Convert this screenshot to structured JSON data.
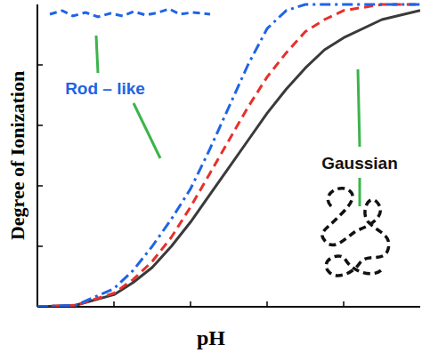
{
  "chart_data": {
    "type": "line",
    "x_label": "pH",
    "y_label": "Degree of Ionization",
    "x": [
      0,
      0.5,
      1,
      1.25,
      1.5,
      1.75,
      2,
      2.25,
      2.5,
      2.75,
      3,
      3.25,
      3.5,
      3.75,
      4,
      4.5,
      5
    ],
    "series": [
      {
        "color": "#3a3a3a",
        "line_style": "solid",
        "values": [
          0,
          0.005,
          0.04,
          0.08,
          0.13,
          0.2,
          0.28,
          0.37,
          0.46,
          0.55,
          0.64,
          0.72,
          0.79,
          0.85,
          0.89,
          0.95,
          0.98
        ]
      },
      {
        "color": "#e8302a",
        "line_style": "dashed",
        "values": [
          0,
          0.005,
          0.045,
          0.09,
          0.15,
          0.23,
          0.33,
          0.44,
          0.55,
          0.66,
          0.76,
          0.84,
          0.91,
          0.95,
          0.98,
          1.0,
          1.0
        ]
      },
      {
        "color": "#1e64e6",
        "line_style": "dashdot",
        "values": [
          0,
          0.005,
          0.06,
          0.12,
          0.2,
          0.29,
          0.39,
          0.52,
          0.66,
          0.8,
          0.92,
          0.98,
          1.0,
          1.0,
          1.0,
          1.0,
          1.0
        ]
      }
    ],
    "annotations": [
      {
        "text": "Rod – like",
        "color": "#1e64e6"
      },
      {
        "text": "Gaussian",
        "color": "#111111"
      }
    ],
    "xlim": [
      0,
      5
    ],
    "ylim": [
      0,
      1
    ],
    "xticks": [
      1,
      2,
      3,
      4
    ],
    "yticks": [
      0.2,
      0.4,
      0.6,
      0.8
    ],
    "tick_labels": false,
    "grid": false
  }
}
